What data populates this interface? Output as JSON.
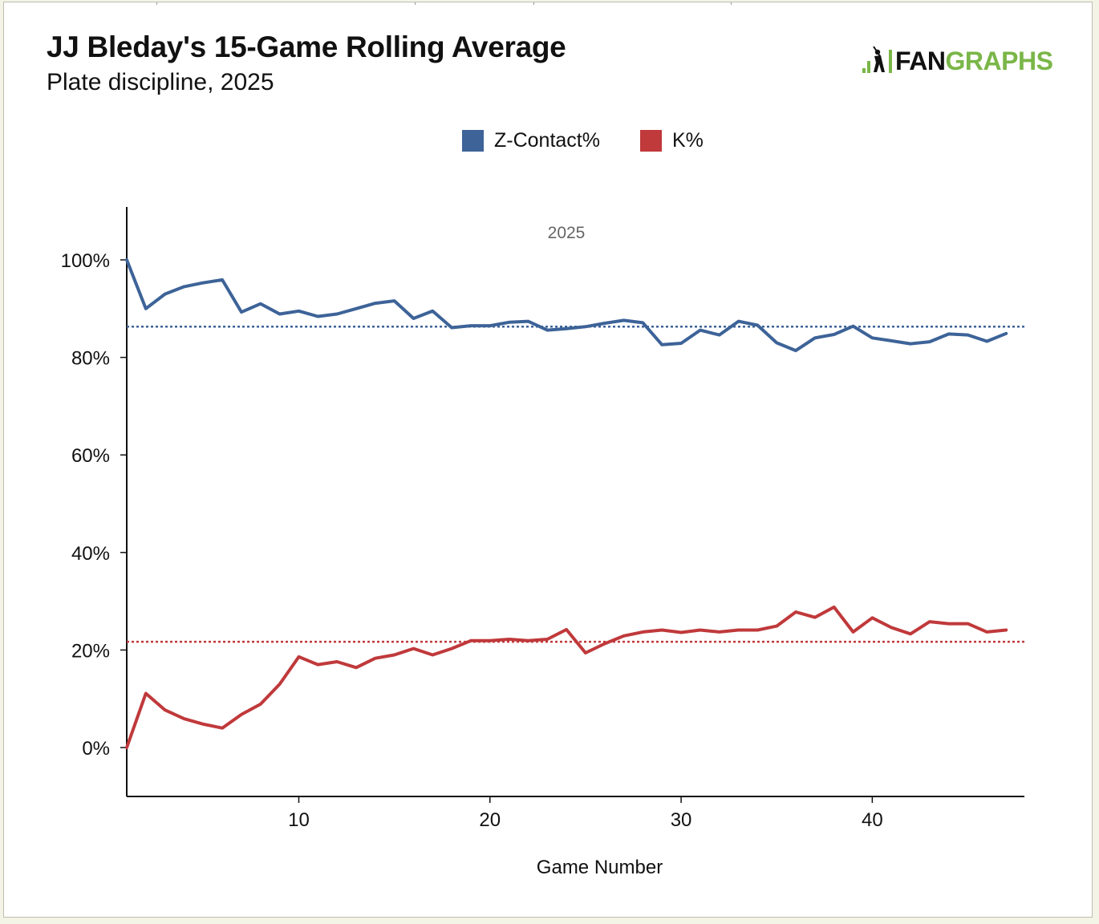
{
  "header": {
    "title": "JJ Bleday's 15-Game Rolling Average",
    "subtitle": "Plate discipline, 2025"
  },
  "logo": {
    "text_part1": "FAN",
    "text_part2": "GRAPHS",
    "icon": "fangraphs-batter-icon",
    "colors": {
      "dark": "#111111",
      "green": "#7ab648"
    }
  },
  "chart_data": {
    "type": "line",
    "title": "JJ Bleday's 15-Game Rolling Average",
    "subtitle": "Plate discipline, 2025",
    "xlabel": "Game Number",
    "ylabel": "",
    "annotation": "2025",
    "xlim": [
      1,
      48
    ],
    "ylim": [
      -10,
      110
    ],
    "x_ticks": [
      10,
      20,
      30,
      40
    ],
    "y_ticks": [
      0,
      20,
      40,
      60,
      80,
      100
    ],
    "y_tick_labels": [
      "0%",
      "20%",
      "40%",
      "60%",
      "80%",
      "100%"
    ],
    "legend": {
      "placement": "top-center"
    },
    "grid": false,
    "x": [
      1,
      2,
      3,
      4,
      5,
      6,
      7,
      8,
      9,
      10,
      11,
      12,
      13,
      14,
      15,
      16,
      17,
      18,
      19,
      20,
      21,
      22,
      23,
      24,
      25,
      26,
      27,
      28,
      29,
      30,
      31,
      32,
      33,
      34,
      35,
      36,
      37,
      38,
      39,
      40,
      41,
      42,
      43,
      44,
      45,
      46,
      47
    ],
    "series": [
      {
        "name": "Z-Contact%",
        "color": "#3d6398",
        "average": 86.3,
        "values": [
          100,
          90,
          93,
          94.5,
          95.3,
          95.9,
          89.3,
          91,
          88.9,
          89.5,
          88.4,
          88.9,
          90,
          91.1,
          91.6,
          88,
          89.5,
          86.1,
          86.5,
          86.5,
          87.2,
          87.4,
          85.6,
          85.9,
          86.3,
          87,
          87.6,
          87.1,
          82.6,
          82.9,
          85.6,
          84.6,
          87.4,
          86.6,
          83,
          81.4,
          84,
          84.7,
          86.4,
          84,
          83.4,
          82.8,
          83.2,
          84.8,
          84.6,
          83.3,
          84.9
        ]
      },
      {
        "name": "K%",
        "color": "#c0393b",
        "average": 21.7,
        "values": [
          0,
          11.1,
          7.7,
          5.9,
          4.8,
          4,
          6.8,
          8.9,
          13,
          18.6,
          17,
          17.6,
          16.4,
          18.3,
          19,
          20.3,
          19,
          20.3,
          21.9,
          21.9,
          22.2,
          21.9,
          22.2,
          24.2,
          19.4,
          21.3,
          22.9,
          23.7,
          24.1,
          23.6,
          24.1,
          23.7,
          24.1,
          24.1,
          24.9,
          27.8,
          26.7,
          28.8,
          23.7,
          26.6,
          24.6,
          23.3,
          25.8,
          25.4,
          25.4,
          23.7,
          24.1
        ]
      }
    ]
  }
}
